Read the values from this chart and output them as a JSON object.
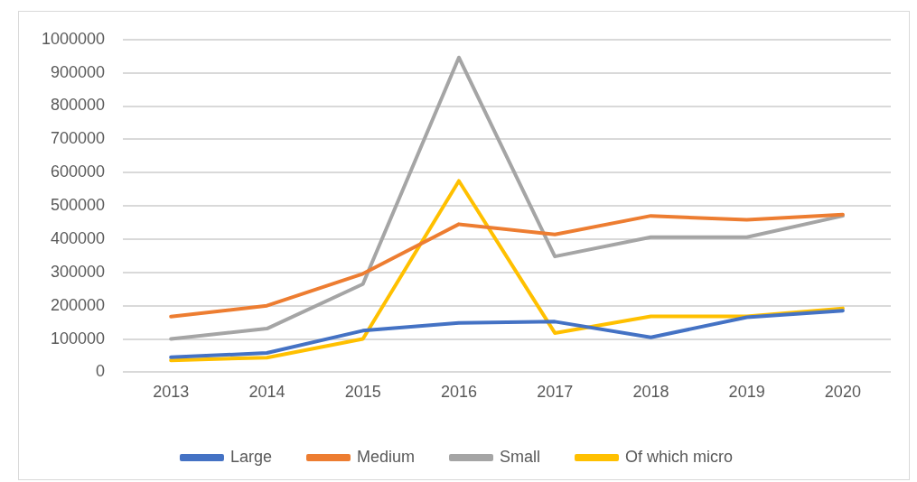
{
  "chart_data": {
    "type": "line",
    "categories": [
      "2013",
      "2014",
      "2015",
      "2016",
      "2017",
      "2018",
      "2019",
      "2020"
    ],
    "series": [
      {
        "name": "Large",
        "color": "#4472c4",
        "values": [
          45000,
          58000,
          125000,
          148000,
          152000,
          105000,
          165000,
          185000
        ]
      },
      {
        "name": "Medium",
        "color": "#ed7d31",
        "values": [
          167000,
          200000,
          296000,
          445000,
          414000,
          470000,
          458000,
          474000
        ]
      },
      {
        "name": "Small",
        "color": "#a5a5a5",
        "values": [
          100000,
          131000,
          265000,
          946000,
          348000,
          406000,
          406000,
          470000
        ]
      },
      {
        "name": "Of which micro",
        "color": "#ffc000",
        "values": [
          36000,
          44000,
          100000,
          575000,
          118000,
          168000,
          168000,
          192000
        ]
      }
    ],
    "ylim": [
      0,
      1000000
    ],
    "yticks": [
      0,
      100000,
      200000,
      300000,
      400000,
      500000,
      600000,
      700000,
      800000,
      900000,
      1000000
    ],
    "grid": "y",
    "legend": "bottom",
    "marker": "none",
    "line_style": "solid"
  }
}
